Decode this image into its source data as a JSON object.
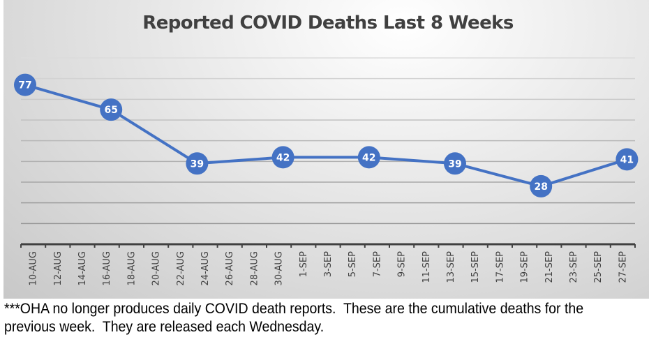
{
  "chart_data": {
    "type": "line",
    "title": "Reported COVID Deaths Last 8 Weeks",
    "xlabel": "",
    "ylabel": "",
    "ylim": [
      0,
      90
    ],
    "y_grid_step": 10,
    "grid": true,
    "legend": "none",
    "x_ticks": [
      "10-AUG",
      "12-AUG",
      "14-AUG",
      "16-AUG",
      "18-AUG",
      "20-AUG",
      "22-AUG",
      "24-AUG",
      "26-AUG",
      "28-AUG",
      "30-AUG",
      "1-SEP",
      "3-SEP",
      "5-SEP",
      "7-SEP",
      "9-SEP",
      "11-SEP",
      "13-SEP",
      "15-SEP",
      "17-SEP",
      "19-SEP",
      "21-SEP",
      "23-SEP",
      "25-SEP",
      "27-SEP"
    ],
    "x_range_days": [
      0,
      50
    ],
    "series": [
      {
        "name": "Reported COVID Deaths",
        "color": "#4472C4",
        "points": [
          {
            "day": 0,
            "value": 77
          },
          {
            "day": 7,
            "value": 65
          },
          {
            "day": 14,
            "value": 39
          },
          {
            "day": 21,
            "value": 42
          },
          {
            "day": 28,
            "value": 42
          },
          {
            "day": 35,
            "value": 39
          },
          {
            "day": 42,
            "value": 28
          },
          {
            "day": 49,
            "value": 41
          }
        ]
      }
    ]
  },
  "footnote": "***OHA no longer produces daily COVID death reports.  These are the cumulative deaths for the previous week.  They are released each Wednesday."
}
